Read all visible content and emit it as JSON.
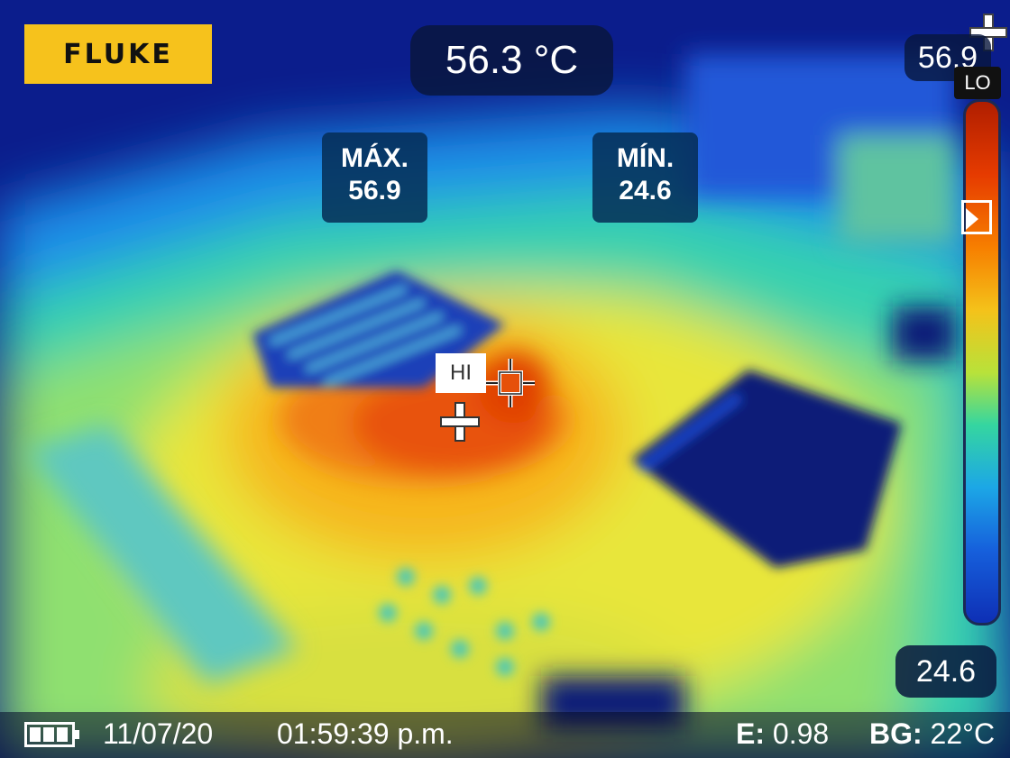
{
  "camera": {
    "brand": "FLUKE",
    "spot_temperature": "56.3 °C",
    "scale_top_value": "56.9",
    "scale_low_badge": "LO",
    "scale_bottom_value": "24.6",
    "max_label": "MÁX.",
    "max_value": "56.9",
    "min_label": "MÍN.",
    "min_value": "24.6",
    "hotspot_label": "HI"
  },
  "status_bar": {
    "date": "11/07/20",
    "time": "01:59:39 p.m.",
    "emissivity_label": "E:",
    "emissivity_value": "0.98",
    "background_label": "BG:",
    "background_value": "22°C"
  },
  "icons": {
    "battery": "battery-icon",
    "cursor": "crosshair-icon",
    "scale_marker": "scale-marker-icon"
  },
  "colors": {
    "brand_yellow": "#f6c21c",
    "hot": "#e63b00",
    "cold": "#0b1d8c"
  }
}
